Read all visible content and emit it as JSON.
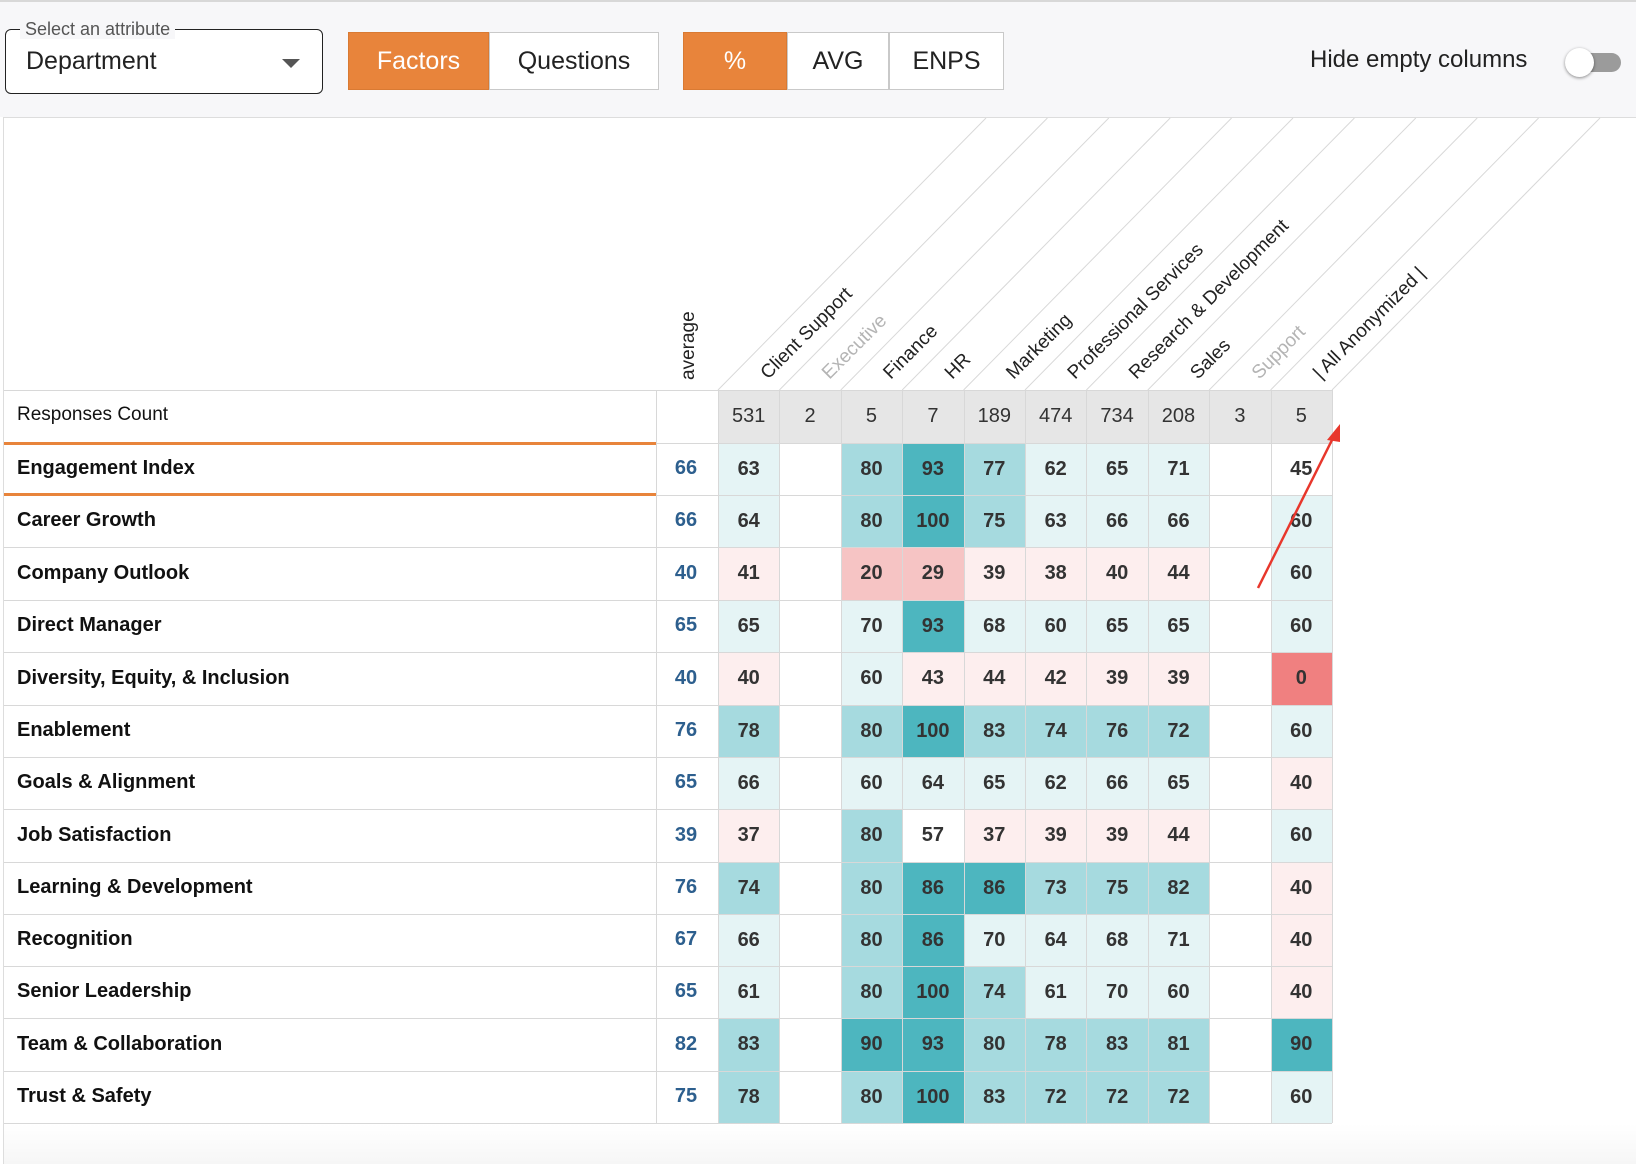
{
  "toolbar": {
    "attribute_legend": "Select an attribute",
    "attribute_value": "Department",
    "view_tabs": [
      {
        "label": "Factors",
        "active": true
      },
      {
        "label": "Questions",
        "active": false
      }
    ],
    "metric_tabs": [
      {
        "label": "%",
        "active": true
      },
      {
        "label": "AVG",
        "active": false
      },
      {
        "label": "ENPS",
        "active": false
      }
    ],
    "hide_empty_label": "Hide empty columns",
    "hide_empty_on": false
  },
  "colors": {
    "accent": "#e8843b",
    "avg_text": "#2d5f8e",
    "heat_teal_strong": "#4db6bf",
    "heat_teal_mid": "#a6dadf",
    "heat_teal_light": "#e5f4f5",
    "heat_pink_light": "#fdeeee",
    "heat_pink_mid": "#f6c4c4",
    "heat_red": "#f08080",
    "annotation_arrow": "#e8372c"
  },
  "table": {
    "average_header": "average",
    "responses_label": "Responses Count",
    "columns": [
      {
        "name": "Client Support",
        "muted": false,
        "count": "531"
      },
      {
        "name": "Executive",
        "muted": true,
        "count": "2"
      },
      {
        "name": "Finance",
        "muted": false,
        "count": "5"
      },
      {
        "name": "HR",
        "muted": false,
        "count": "7"
      },
      {
        "name": "Marketing",
        "muted": false,
        "count": "189"
      },
      {
        "name": "Professional Services",
        "muted": false,
        "count": "474"
      },
      {
        "name": "Research & Development",
        "muted": false,
        "count": "734"
      },
      {
        "name": "Sales",
        "muted": false,
        "count": "208"
      },
      {
        "name": "Support",
        "muted": true,
        "count": "3"
      },
      {
        "name": "| All Anonymized |",
        "muted": false,
        "count": "5"
      }
    ],
    "rows": [
      {
        "label": "Engagement Index",
        "average": "66",
        "values": [
          "63",
          "",
          "80",
          "93",
          "77",
          "62",
          "65",
          "71",
          "",
          "45"
        ]
      },
      {
        "label": "Career Growth",
        "average": "66",
        "values": [
          "64",
          "",
          "80",
          "100",
          "75",
          "63",
          "66",
          "66",
          "",
          "60"
        ]
      },
      {
        "label": "Company Outlook",
        "average": "40",
        "values": [
          "41",
          "",
          "20",
          "29",
          "39",
          "38",
          "40",
          "44",
          "",
          "60"
        ]
      },
      {
        "label": "Direct Manager",
        "average": "65",
        "values": [
          "65",
          "",
          "70",
          "93",
          "68",
          "60",
          "65",
          "65",
          "",
          "60"
        ]
      },
      {
        "label": "Diversity, Equity, & Inclusion",
        "average": "40",
        "values": [
          "40",
          "",
          "60",
          "43",
          "44",
          "42",
          "39",
          "39",
          "",
          "0"
        ]
      },
      {
        "label": "Enablement",
        "average": "76",
        "values": [
          "78",
          "",
          "80",
          "100",
          "83",
          "74",
          "76",
          "72",
          "",
          "60"
        ]
      },
      {
        "label": "Goals & Alignment",
        "average": "65",
        "values": [
          "66",
          "",
          "60",
          "64",
          "65",
          "62",
          "66",
          "65",
          "",
          "40"
        ]
      },
      {
        "label": "Job Satisfaction",
        "average": "39",
        "values": [
          "37",
          "",
          "80",
          "57",
          "37",
          "39",
          "39",
          "44",
          "",
          "60"
        ]
      },
      {
        "label": "Learning & Development",
        "average": "76",
        "values": [
          "74",
          "",
          "80",
          "86",
          "86",
          "73",
          "75",
          "82",
          "",
          "40"
        ]
      },
      {
        "label": "Recognition",
        "average": "67",
        "values": [
          "66",
          "",
          "80",
          "86",
          "70",
          "64",
          "68",
          "71",
          "",
          "40"
        ]
      },
      {
        "label": "Senior Leadership",
        "average": "65",
        "values": [
          "61",
          "",
          "80",
          "100",
          "74",
          "61",
          "70",
          "60",
          "",
          "40"
        ]
      },
      {
        "label": "Team & Collaboration",
        "average": "82",
        "values": [
          "83",
          "",
          "90",
          "93",
          "80",
          "78",
          "83",
          "81",
          "",
          "90"
        ]
      },
      {
        "label": "Trust & Safety",
        "average": "75",
        "values": [
          "78",
          "",
          "80",
          "100",
          "83",
          "72",
          "72",
          "72",
          "",
          "60"
        ]
      }
    ]
  }
}
